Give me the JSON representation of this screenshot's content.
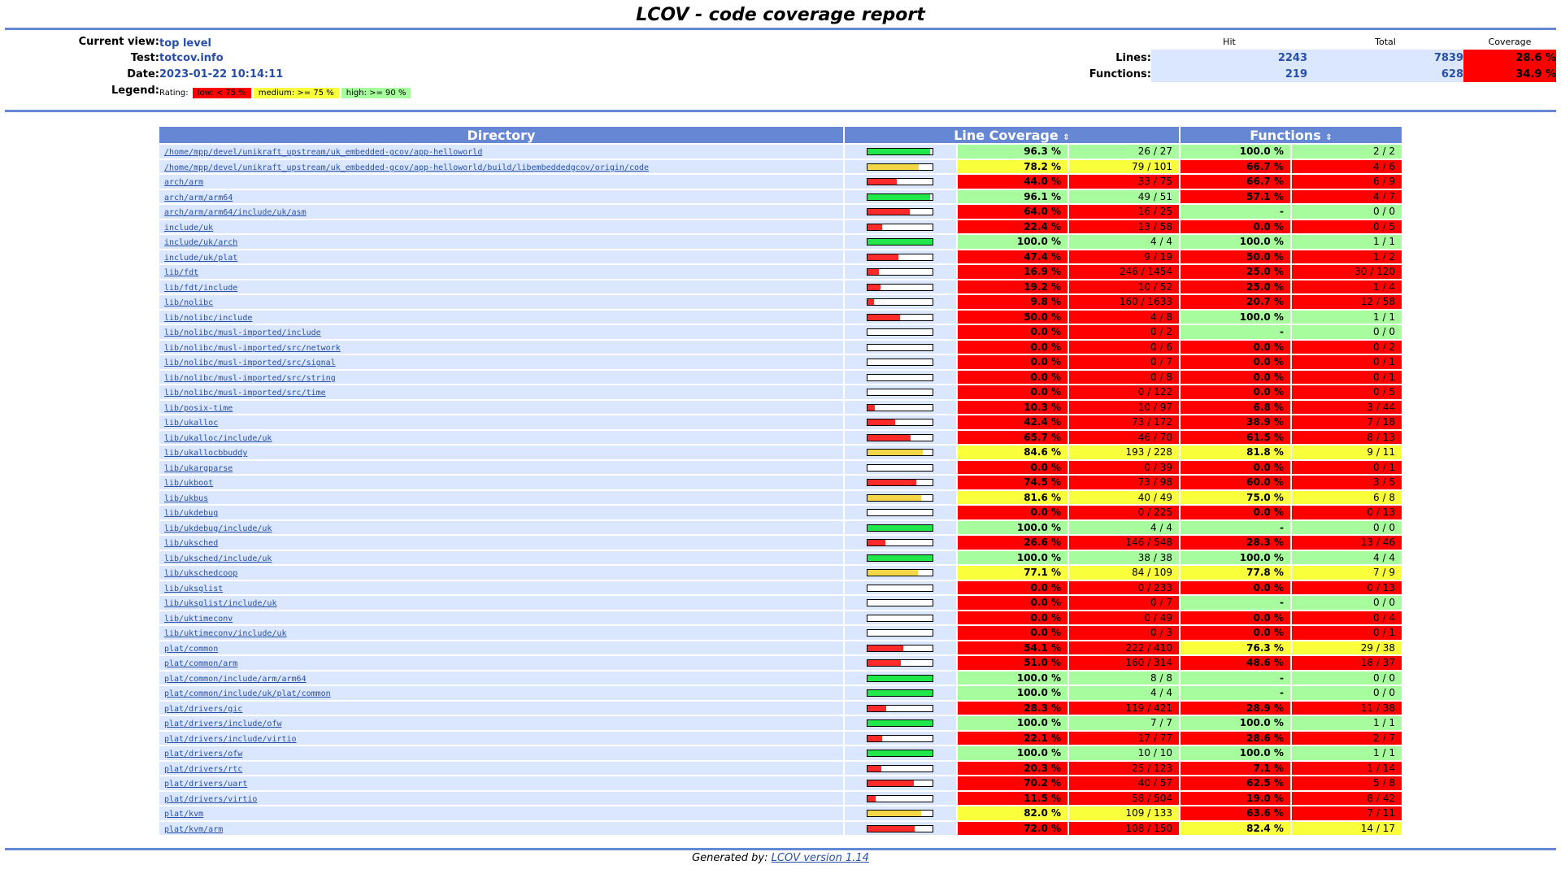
{
  "title": "LCOV - code coverage report",
  "header": {
    "current_view_label": "Current view:",
    "current_view": "top level",
    "test_label": "Test:",
    "test": "totcov.info",
    "date_label": "Date:",
    "date": "2023-01-22 10:14:11",
    "legend_label": "Legend:",
    "rating_label": "Rating:",
    "legend_low": "low: < 75 %",
    "legend_medium": "medium: >= 75 %",
    "legend_high": "high: >= 90 %",
    "col_hit": "Hit",
    "col_total": "Total",
    "col_coverage": "Coverage",
    "lines_label": "Lines:",
    "lines_hit": "2243",
    "lines_total": "7839",
    "lines_coverage": "28.6 %",
    "functions_label": "Functions:",
    "functions_hit": "219",
    "functions_total": "628",
    "functions_coverage": "34.9 %"
  },
  "table": {
    "col_directory": "Directory",
    "col_line_coverage": "Line Coverage",
    "col_functions": "Functions",
    "sort_icon": "⇕"
  },
  "colors": {
    "low": "#ff0000",
    "medium": "#f9ff3a",
    "high": "#a7fc9d",
    "bar_low": "#ff2a2a",
    "bar_medium": "#f5d646",
    "bar_high": "#20e84a",
    "none": "#a7fc9d"
  },
  "rows": [
    {
      "dir": "/home/mpp/devel/unikraft_upstream/uk_embedded-gcov/app-helloworld",
      "line_pct": "96.3 %",
      "line_cnt": "26 / 27",
      "line_fill": 0.963,
      "line_rate": "high",
      "func_pct": "100.0 %",
      "func_cnt": "2 / 2",
      "func_rate": "high"
    },
    {
      "dir": "/home/mpp/devel/unikraft_upstream/uk_embedded-gcov/app-helloworld/build/libembeddedgcov/origin/code",
      "line_pct": "78.2 %",
      "line_cnt": "79 / 101",
      "line_fill": 0.782,
      "line_rate": "medium",
      "func_pct": "66.7 %",
      "func_cnt": "4 / 6",
      "func_rate": "low"
    },
    {
      "dir": "arch/arm",
      "line_pct": "44.0 %",
      "line_cnt": "33 / 75",
      "line_fill": 0.44,
      "line_rate": "low",
      "func_pct": "66.7 %",
      "func_cnt": "6 / 9",
      "func_rate": "low"
    },
    {
      "dir": "arch/arm/arm64",
      "line_pct": "96.1 %",
      "line_cnt": "49 / 51",
      "line_fill": 0.961,
      "line_rate": "high",
      "func_pct": "57.1 %",
      "func_cnt": "4 / 7",
      "func_rate": "low"
    },
    {
      "dir": "arch/arm/arm64/include/uk/asm",
      "line_pct": "64.0 %",
      "line_cnt": "16 / 25",
      "line_fill": 0.64,
      "line_rate": "low",
      "func_pct": "-",
      "func_cnt": "0 / 0",
      "func_rate": "none"
    },
    {
      "dir": "include/uk",
      "line_pct": "22.4 %",
      "line_cnt": "13 / 58",
      "line_fill": 0.224,
      "line_rate": "low",
      "func_pct": "0.0 %",
      "func_cnt": "0 / 5",
      "func_rate": "low"
    },
    {
      "dir": "include/uk/arch",
      "line_pct": "100.0 %",
      "line_cnt": "4 / 4",
      "line_fill": 1.0,
      "line_rate": "high",
      "func_pct": "100.0 %",
      "func_cnt": "1 / 1",
      "func_rate": "high"
    },
    {
      "dir": "include/uk/plat",
      "line_pct": "47.4 %",
      "line_cnt": "9 / 19",
      "line_fill": 0.474,
      "line_rate": "low",
      "func_pct": "50.0 %",
      "func_cnt": "1 / 2",
      "func_rate": "low"
    },
    {
      "dir": "lib/fdt",
      "line_pct": "16.9 %",
      "line_cnt": "246 / 1454",
      "line_fill": 0.169,
      "line_rate": "low",
      "func_pct": "25.0 %",
      "func_cnt": "30 / 120",
      "func_rate": "low"
    },
    {
      "dir": "lib/fdt/include",
      "line_pct": "19.2 %",
      "line_cnt": "10 / 52",
      "line_fill": 0.192,
      "line_rate": "low",
      "func_pct": "25.0 %",
      "func_cnt": "1 / 4",
      "func_rate": "low"
    },
    {
      "dir": "lib/nolibc",
      "line_pct": "9.8 %",
      "line_cnt": "160 / 1633",
      "line_fill": 0.098,
      "line_rate": "low",
      "func_pct": "20.7 %",
      "func_cnt": "12 / 58",
      "func_rate": "low"
    },
    {
      "dir": "lib/nolibc/include",
      "line_pct": "50.0 %",
      "line_cnt": "4 / 8",
      "line_fill": 0.5,
      "line_rate": "low",
      "func_pct": "100.0 %",
      "func_cnt": "1 / 1",
      "func_rate": "high"
    },
    {
      "dir": "lib/nolibc/musl-imported/include",
      "line_pct": "0.0 %",
      "line_cnt": "0 / 2",
      "line_fill": 0,
      "line_rate": "low",
      "func_pct": "-",
      "func_cnt": "0 / 0",
      "func_rate": "none"
    },
    {
      "dir": "lib/nolibc/musl-imported/src/network",
      "line_pct": "0.0 %",
      "line_cnt": "0 / 6",
      "line_fill": 0,
      "line_rate": "low",
      "func_pct": "0.0 %",
      "func_cnt": "0 / 2",
      "func_rate": "low"
    },
    {
      "dir": "lib/nolibc/musl-imported/src/signal",
      "line_pct": "0.0 %",
      "line_cnt": "0 / 7",
      "line_fill": 0,
      "line_rate": "low",
      "func_pct": "0.0 %",
      "func_cnt": "0 / 1",
      "func_rate": "low"
    },
    {
      "dir": "lib/nolibc/musl-imported/src/string",
      "line_pct": "0.0 %",
      "line_cnt": "0 / 8",
      "line_fill": 0,
      "line_rate": "low",
      "func_pct": "0.0 %",
      "func_cnt": "0 / 1",
      "func_rate": "low"
    },
    {
      "dir": "lib/nolibc/musl-imported/src/time",
      "line_pct": "0.0 %",
      "line_cnt": "0 / 122",
      "line_fill": 0,
      "line_rate": "low",
      "func_pct": "0.0 %",
      "func_cnt": "0 / 5",
      "func_rate": "low"
    },
    {
      "dir": "lib/posix-time",
      "line_pct": "10.3 %",
      "line_cnt": "10 / 97",
      "line_fill": 0.103,
      "line_rate": "low",
      "func_pct": "6.8 %",
      "func_cnt": "3 / 44",
      "func_rate": "low"
    },
    {
      "dir": "lib/ukalloc",
      "line_pct": "42.4 %",
      "line_cnt": "73 / 172",
      "line_fill": 0.424,
      "line_rate": "low",
      "func_pct": "38.9 %",
      "func_cnt": "7 / 18",
      "func_rate": "low"
    },
    {
      "dir": "lib/ukalloc/include/uk",
      "line_pct": "65.7 %",
      "line_cnt": "46 / 70",
      "line_fill": 0.657,
      "line_rate": "low",
      "func_pct": "61.5 %",
      "func_cnt": "8 / 13",
      "func_rate": "low"
    },
    {
      "dir": "lib/ukallocbbuddy",
      "line_pct": "84.6 %",
      "line_cnt": "193 / 228",
      "line_fill": 0.846,
      "line_rate": "medium",
      "func_pct": "81.8 %",
      "func_cnt": "9 / 11",
      "func_rate": "medium"
    },
    {
      "dir": "lib/ukargparse",
      "line_pct": "0.0 %",
      "line_cnt": "0 / 39",
      "line_fill": 0,
      "line_rate": "low",
      "func_pct": "0.0 %",
      "func_cnt": "0 / 1",
      "func_rate": "low"
    },
    {
      "dir": "lib/ukboot",
      "line_pct": "74.5 %",
      "line_cnt": "73 / 98",
      "line_fill": 0.745,
      "line_rate": "low",
      "func_pct": "60.0 %",
      "func_cnt": "3 / 5",
      "func_rate": "low"
    },
    {
      "dir": "lib/ukbus",
      "line_pct": "81.6 %",
      "line_cnt": "40 / 49",
      "line_fill": 0.816,
      "line_rate": "medium",
      "func_pct": "75.0 %",
      "func_cnt": "6 / 8",
      "func_rate": "medium"
    },
    {
      "dir": "lib/ukdebug",
      "line_pct": "0.0 %",
      "line_cnt": "0 / 225",
      "line_fill": 0,
      "line_rate": "low",
      "func_pct": "0.0 %",
      "func_cnt": "0 / 13",
      "func_rate": "low"
    },
    {
      "dir": "lib/ukdebug/include/uk",
      "line_pct": "100.0 %",
      "line_cnt": "4 / 4",
      "line_fill": 1.0,
      "line_rate": "high",
      "func_pct": "-",
      "func_cnt": "0 / 0",
      "func_rate": "none"
    },
    {
      "dir": "lib/uksched",
      "line_pct": "26.6 %",
      "line_cnt": "146 / 548",
      "line_fill": 0.266,
      "line_rate": "low",
      "func_pct": "28.3 %",
      "func_cnt": "13 / 46",
      "func_rate": "low"
    },
    {
      "dir": "lib/uksched/include/uk",
      "line_pct": "100.0 %",
      "line_cnt": "38 / 38",
      "line_fill": 1.0,
      "line_rate": "high",
      "func_pct": "100.0 %",
      "func_cnt": "4 / 4",
      "func_rate": "high"
    },
    {
      "dir": "lib/ukschedcoop",
      "line_pct": "77.1 %",
      "line_cnt": "84 / 109",
      "line_fill": 0.771,
      "line_rate": "medium",
      "func_pct": "77.8 %",
      "func_cnt": "7 / 9",
      "func_rate": "medium"
    },
    {
      "dir": "lib/uksglist",
      "line_pct": "0.0 %",
      "line_cnt": "0 / 233",
      "line_fill": 0,
      "line_rate": "low",
      "func_pct": "0.0 %",
      "func_cnt": "0 / 13",
      "func_rate": "low"
    },
    {
      "dir": "lib/uksglist/include/uk",
      "line_pct": "0.0 %",
      "line_cnt": "0 / 7",
      "line_fill": 0,
      "line_rate": "low",
      "func_pct": "-",
      "func_cnt": "0 / 0",
      "func_rate": "none"
    },
    {
      "dir": "lib/uktimeconv",
      "line_pct": "0.0 %",
      "line_cnt": "0 / 49",
      "line_fill": 0,
      "line_rate": "low",
      "func_pct": "0.0 %",
      "func_cnt": "0 / 4",
      "func_rate": "low"
    },
    {
      "dir": "lib/uktimeconv/include/uk",
      "line_pct": "0.0 %",
      "line_cnt": "0 / 3",
      "line_fill": 0,
      "line_rate": "low",
      "func_pct": "0.0 %",
      "func_cnt": "0 / 1",
      "func_rate": "low"
    },
    {
      "dir": "plat/common",
      "line_pct": "54.1 %",
      "line_cnt": "222 / 410",
      "line_fill": 0.541,
      "line_rate": "low",
      "func_pct": "76.3 %",
      "func_cnt": "29 / 38",
      "func_rate": "medium"
    },
    {
      "dir": "plat/common/arm",
      "line_pct": "51.0 %",
      "line_cnt": "160 / 314",
      "line_fill": 0.51,
      "line_rate": "low",
      "func_pct": "48.6 %",
      "func_cnt": "18 / 37",
      "func_rate": "low"
    },
    {
      "dir": "plat/common/include/arm/arm64",
      "line_pct": "100.0 %",
      "line_cnt": "8 / 8",
      "line_fill": 1.0,
      "line_rate": "high",
      "func_pct": "-",
      "func_cnt": "0 / 0",
      "func_rate": "none"
    },
    {
      "dir": "plat/common/include/uk/plat/common",
      "line_pct": "100.0 %",
      "line_cnt": "4 / 4",
      "line_fill": 1.0,
      "line_rate": "high",
      "func_pct": "-",
      "func_cnt": "0 / 0",
      "func_rate": "none"
    },
    {
      "dir": "plat/drivers/gic",
      "line_pct": "28.3 %",
      "line_cnt": "119 / 421",
      "line_fill": 0.283,
      "line_rate": "low",
      "func_pct": "28.9 %",
      "func_cnt": "11 / 38",
      "func_rate": "low"
    },
    {
      "dir": "plat/drivers/include/ofw",
      "line_pct": "100.0 %",
      "line_cnt": "7 / 7",
      "line_fill": 1.0,
      "line_rate": "high",
      "func_pct": "100.0 %",
      "func_cnt": "1 / 1",
      "func_rate": "high"
    },
    {
      "dir": "plat/drivers/include/virtio",
      "line_pct": "22.1 %",
      "line_cnt": "17 / 77",
      "line_fill": 0.221,
      "line_rate": "low",
      "func_pct": "28.6 %",
      "func_cnt": "2 / 7",
      "func_rate": "low"
    },
    {
      "dir": "plat/drivers/ofw",
      "line_pct": "100.0 %",
      "line_cnt": "10 / 10",
      "line_fill": 1.0,
      "line_rate": "high",
      "func_pct": "100.0 %",
      "func_cnt": "1 / 1",
      "func_rate": "high"
    },
    {
      "dir": "plat/drivers/rtc",
      "line_pct": "20.3 %",
      "line_cnt": "25 / 123",
      "line_fill": 0.203,
      "line_rate": "low",
      "func_pct": "7.1 %",
      "func_cnt": "1 / 14",
      "func_rate": "low"
    },
    {
      "dir": "plat/drivers/uart",
      "line_pct": "70.2 %",
      "line_cnt": "40 / 57",
      "line_fill": 0.702,
      "line_rate": "low",
      "func_pct": "62.5 %",
      "func_cnt": "5 / 8",
      "func_rate": "low"
    },
    {
      "dir": "plat/drivers/virtio",
      "line_pct": "11.5 %",
      "line_cnt": "58 / 504",
      "line_fill": 0.115,
      "line_rate": "low",
      "func_pct": "19.0 %",
      "func_cnt": "8 / 42",
      "func_rate": "low"
    },
    {
      "dir": "plat/kvm",
      "line_pct": "82.0 %",
      "line_cnt": "109 / 133",
      "line_fill": 0.82,
      "line_rate": "medium",
      "func_pct": "63.6 %",
      "func_cnt": "7 / 11",
      "func_rate": "low"
    },
    {
      "dir": "plat/kvm/arm",
      "line_pct": "72.0 %",
      "line_cnt": "108 / 150",
      "line_fill": 0.72,
      "line_rate": "low",
      "func_pct": "82.4 %",
      "func_cnt": "14 / 17",
      "func_rate": "medium"
    }
  ],
  "footer": {
    "generated_by": "Generated by:",
    "lcov_link": "LCOV version 1.14"
  }
}
